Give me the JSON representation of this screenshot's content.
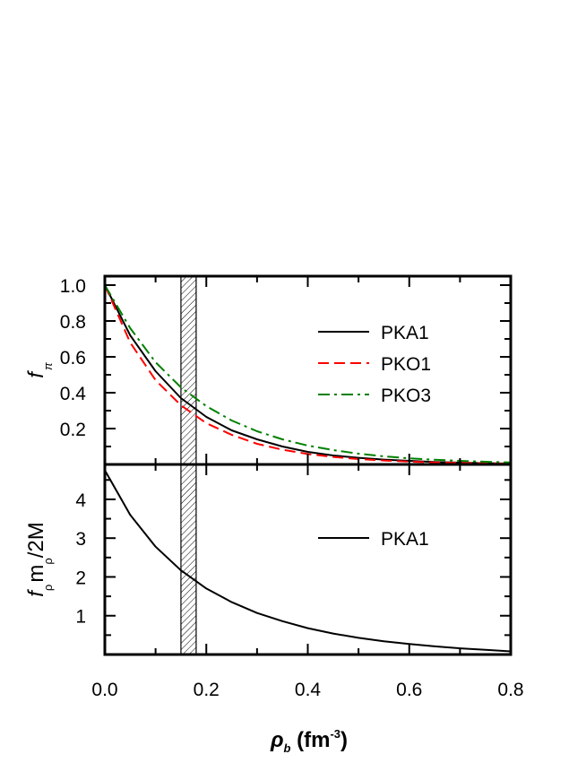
{
  "chart_data": [
    {
      "type": "line",
      "panel": "top",
      "ylabel": {
        "main": "f",
        "sub": "π"
      },
      "xlim": [
        0,
        0.8
      ],
      "ylim": [
        0,
        1.05
      ],
      "x_ticks": [
        0.0,
        0.2,
        0.4,
        0.6,
        0.8
      ],
      "y_ticks": [
        {
          "value": 0.2,
          "label": "0.2"
        },
        {
          "value": 0.4,
          "label": "0.4"
        },
        {
          "value": 0.6,
          "label": "0.6"
        },
        {
          "value": 0.8,
          "label": "0.8"
        },
        {
          "value": 1.0,
          "label": "1.0"
        }
      ],
      "shaded_band": [
        0.15,
        0.18
      ],
      "legend_position": "right",
      "x": [
        0,
        0.05,
        0.1,
        0.15,
        0.2,
        0.25,
        0.3,
        0.35,
        0.4,
        0.45,
        0.5,
        0.55,
        0.6,
        0.65,
        0.7,
        0.75,
        0.8
      ],
      "series": [
        {
          "name": "PKA1",
          "color": "#000000",
          "dash": "solid",
          "values": [
            1.0,
            0.72,
            0.52,
            0.37,
            0.265,
            0.19,
            0.14,
            0.1,
            0.07,
            0.05,
            0.037,
            0.027,
            0.02,
            0.014,
            0.01,
            0.007,
            0.005
          ]
        },
        {
          "name": "PKO1",
          "color": "#ff0000",
          "dash": "dashed",
          "values": [
            1.0,
            0.68,
            0.47,
            0.33,
            0.23,
            0.165,
            0.115,
            0.082,
            0.058,
            0.042,
            0.03,
            0.022,
            0.016,
            0.011,
            0.008,
            0.006,
            0.004
          ]
        },
        {
          "name": "PKO3",
          "color": "#008000",
          "dash": "dashdot",
          "values": [
            1.0,
            0.76,
            0.57,
            0.43,
            0.325,
            0.245,
            0.185,
            0.14,
            0.105,
            0.08,
            0.06,
            0.045,
            0.034,
            0.026,
            0.02,
            0.015,
            0.011
          ]
        }
      ]
    },
    {
      "type": "line",
      "panel": "bottom",
      "ylabel": {
        "f": "f",
        "f_sub": "ρ",
        "m": "m",
        "m_sub": "ρ",
        "rest": "/2M"
      },
      "xlabel": {
        "rho": "ρ",
        "rho_sub": "b",
        "unit": " (fm",
        "sup": "-3",
        "close": ")"
      },
      "xlim": [
        0,
        0.8
      ],
      "ylim": [
        0,
        4.9
      ],
      "x_ticks": [
        {
          "value": 0.0,
          "label": "0.0"
        },
        {
          "value": 0.2,
          "label": "0.2"
        },
        {
          "value": 0.4,
          "label": "0.4"
        },
        {
          "value": 0.6,
          "label": "0.6"
        },
        {
          "value": 0.8,
          "label": "0.8"
        }
      ],
      "y_ticks": [
        {
          "value": 1,
          "label": "1"
        },
        {
          "value": 2,
          "label": "2"
        },
        {
          "value": 3,
          "label": "3"
        },
        {
          "value": 4,
          "label": "4"
        }
      ],
      "shaded_band": [
        0.15,
        0.18
      ],
      "legend_position": "right",
      "x": [
        0,
        0.05,
        0.1,
        0.15,
        0.2,
        0.25,
        0.3,
        0.35,
        0.4,
        0.45,
        0.5,
        0.55,
        0.6,
        0.65,
        0.7,
        0.75,
        0.8
      ],
      "series": [
        {
          "name": "PKA1",
          "color": "#000000",
          "dash": "solid",
          "values": [
            4.75,
            3.6,
            2.78,
            2.17,
            1.7,
            1.35,
            1.07,
            0.86,
            0.68,
            0.54,
            0.43,
            0.34,
            0.27,
            0.21,
            0.16,
            0.12,
            0.08
          ]
        }
      ]
    }
  ]
}
